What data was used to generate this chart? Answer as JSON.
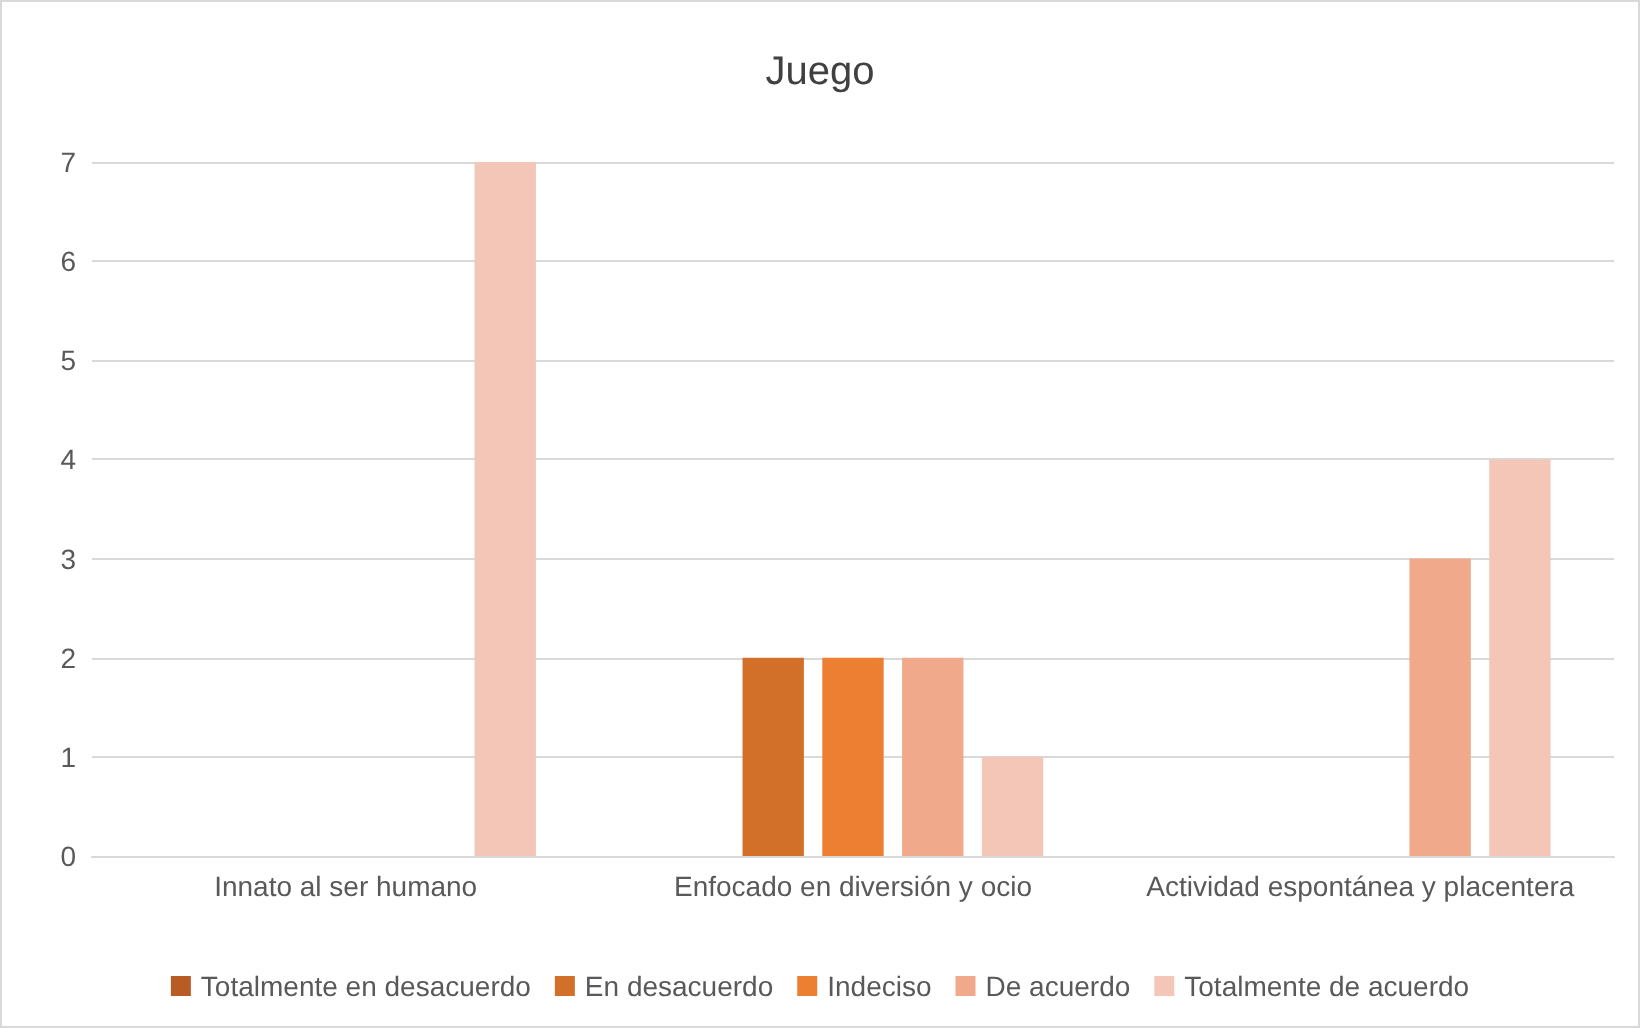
{
  "chart_data": {
    "type": "bar",
    "title": "Juego",
    "categories": [
      "Innato al ser humano",
      "Enfocado en diversión y ocio",
      "Actividad espontánea y placentera"
    ],
    "series": [
      {
        "name": "Totalmente en desacuerdo",
        "color": "#b85b25",
        "values": [
          null,
          null,
          null
        ]
      },
      {
        "name": "En desacuerdo",
        "color": "#d2702a",
        "values": [
          null,
          2,
          null
        ]
      },
      {
        "name": "Indeciso",
        "color": "#ed7f33",
        "values": [
          null,
          2,
          null
        ]
      },
      {
        "name": "De acuerdo",
        "color": "#f0a98b",
        "values": [
          null,
          2,
          3
        ]
      },
      {
        "name": "Totalmente de acuerdo",
        "color": "#f4c6b7",
        "values": [
          7,
          1,
          4
        ]
      }
    ],
    "ylim": [
      0,
      7
    ],
    "yticks": [
      0,
      1,
      2,
      3,
      4,
      5,
      6,
      7
    ],
    "grid": "y",
    "legend": "bottom"
  }
}
